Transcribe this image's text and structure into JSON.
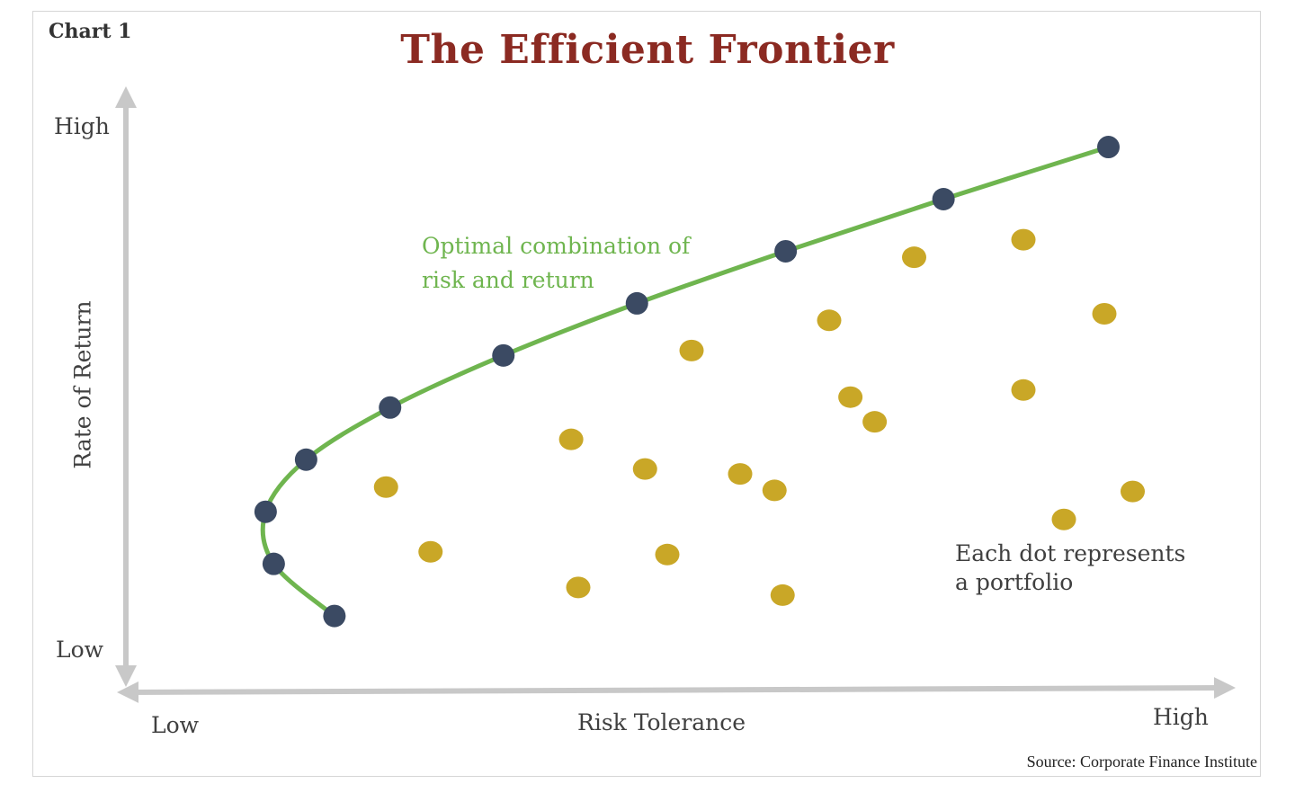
{
  "chart_label": "Chart 1",
  "title": "The Efficient Frontier",
  "source": "Source: Corporate Finance Institute",
  "colors": {
    "title": "#8b2a22",
    "frontier_line": "#6fb54f",
    "frontier_point": "#3b4a63",
    "portfolio_dot": "#c9a727",
    "axis": "#c8c8c8",
    "frontier_annotation": "#6fb54f"
  },
  "chart_data": {
    "type": "scatter",
    "title": "The Efficient Frontier",
    "xlabel": "Risk Tolerance",
    "ylabel": "Rate of Return",
    "x_tick_labels": [
      "Low",
      "High"
    ],
    "y_tick_labels": [
      "Low",
      "High"
    ],
    "xlim": [
      0,
      100
    ],
    "ylim": [
      0,
      100
    ],
    "grid": false,
    "series": [
      {
        "name": "Efficient frontier",
        "style": "line+markers",
        "points": [
          [
            17.5,
            9
          ],
          [
            11.5,
            18.5
          ],
          [
            10.7,
            28
          ],
          [
            14.7,
            37.5
          ],
          [
            23,
            47
          ],
          [
            34.2,
            56.5
          ],
          [
            47.4,
            66
          ],
          [
            62.1,
            75.5
          ],
          [
            77.7,
            85
          ],
          [
            94,
            94.5
          ]
        ]
      },
      {
        "name": "Portfolios",
        "style": "markers",
        "points": [
          [
            22.6,
            32.5
          ],
          [
            27,
            20.7
          ],
          [
            40.9,
            41.2
          ],
          [
            41.6,
            14.2
          ],
          [
            48.2,
            35.8
          ],
          [
            50.4,
            20.2
          ],
          [
            52.8,
            57.4
          ],
          [
            57.6,
            34.9
          ],
          [
            61,
            31.9
          ],
          [
            61.8,
            12.8
          ],
          [
            66.4,
            62.9
          ],
          [
            68.5,
            48.9
          ],
          [
            70.9,
            44.4
          ],
          [
            74.8,
            74.4
          ],
          [
            85.6,
            50.2
          ],
          [
            89.6,
            26.6
          ],
          [
            85.6,
            77.6
          ],
          [
            96.4,
            31.7
          ],
          [
            93.6,
            64.1
          ]
        ]
      }
    ],
    "annotations": [
      {
        "text_lines": [
          "Optimal combination of",
          "risk and return"
        ],
        "color": "frontier_annotation"
      },
      {
        "text_lines": [
          "Each dot represents",
          "a portfolio"
        ],
        "color": "default"
      }
    ]
  }
}
